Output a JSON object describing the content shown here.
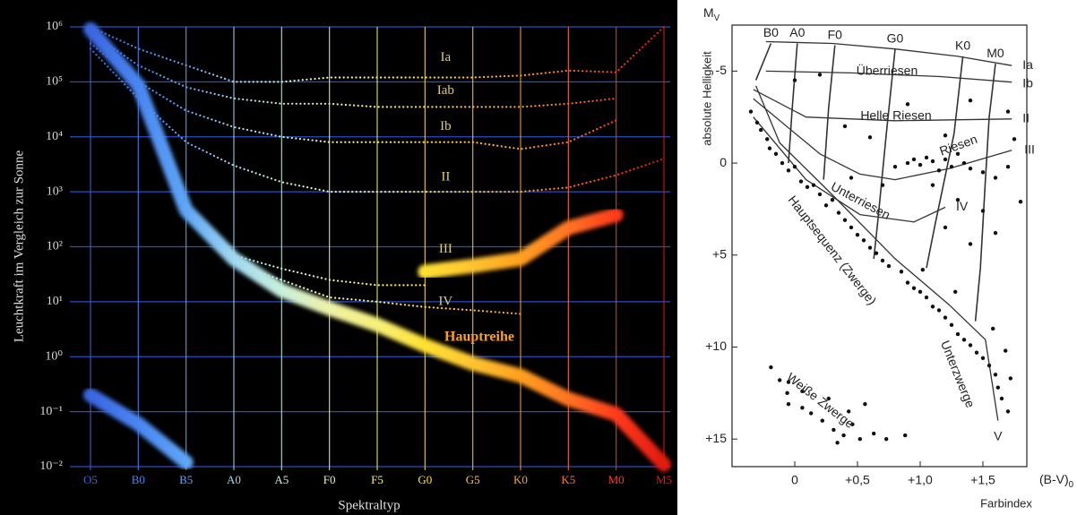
{
  "chart_data": [
    {
      "type": "line",
      "y_label": "Leuchtkraft im Vergleich zur Sonne",
      "x_label": "Spektraltyp",
      "categories": [
        "O5",
        "B0",
        "B5",
        "A0",
        "A5",
        "F0",
        "F5",
        "G0",
        "G5",
        "K0",
        "K5",
        "M0",
        "M5"
      ],
      "category_colors": [
        "#3a66e0",
        "#4a86f2",
        "#5ea6f6",
        "#a0d8f0",
        "#c8f0dc",
        "#eef2a6",
        "#f6f07a",
        "#ffe030",
        "#ffc430",
        "#ffa020",
        "#ff7424",
        "#ff3a1c",
        "#e01a10"
      ],
      "log_y": true,
      "ylim": [
        0.01,
        1000000
      ],
      "yticks": [
        {
          "value": 0.01,
          "label": "10⁻²"
        },
        {
          "value": 0.1,
          "label": "10⁻¹"
        },
        {
          "value": 1,
          "label": "10⁰"
        },
        {
          "value": 10,
          "label": "10¹"
        },
        {
          "value": 100,
          "label": "10²"
        },
        {
          "value": 1000,
          "label": "10³"
        },
        {
          "value": 10000,
          "label": "10⁴"
        },
        {
          "value": 100000,
          "label": "10⁵"
        },
        {
          "value": 1000000,
          "label": "10⁶"
        }
      ],
      "grid": true,
      "grid_color": "#2a4cc4",
      "series": [
        {
          "name": "Ia",
          "style": "dotted",
          "values": [
            1000000,
            400000,
            200000,
            100000,
            100000,
            120000,
            120000,
            120000,
            120000,
            130000,
            160000,
            150000,
            1000000
          ]
        },
        {
          "name": "Iab",
          "style": "dotted",
          "values": [
            800000,
            200000,
            80000,
            50000,
            40000,
            40000,
            35000,
            35000,
            35000,
            35000,
            40000,
            50000,
            null
          ]
        },
        {
          "name": "Ib",
          "style": "dotted",
          "values": [
            500000,
            100000,
            30000,
            15000,
            10000,
            8000,
            8000,
            8000,
            8000,
            6000,
            8000,
            20000,
            null
          ]
        },
        {
          "name": "II",
          "style": "dotted",
          "values": [
            400000,
            50000,
            8000,
            3000,
            1500,
            1000,
            1000,
            1000,
            1000,
            1000,
            1200,
            2000,
            4000
          ]
        },
        {
          "name": "III",
          "style": "dotted",
          "values": [
            null,
            null,
            null,
            70,
            40,
            25,
            20,
            20,
            null,
            null,
            null,
            null,
            null
          ]
        },
        {
          "name": "IV",
          "style": "dotted",
          "values": [
            null,
            null,
            null,
            50,
            25,
            12,
            10,
            8,
            7,
            6,
            null,
            null,
            null
          ]
        },
        {
          "name": "Hauptreihe",
          "style": "band",
          "label_color": "#ffa21a",
          "values": [
            900000,
            87000,
            460,
            60,
            16,
            7.5,
            3.8,
            1.6,
            0.75,
            0.45,
            0.17,
            0.09,
            0.011
          ]
        },
        {
          "style": "band",
          "values": [
            null,
            null,
            null,
            null,
            null,
            null,
            null,
            35,
            45,
            60,
            220,
            380,
            null
          ]
        },
        {
          "style": "band",
          "values": [
            0.2,
            0.06,
            0.012,
            null,
            null,
            null,
            null,
            null,
            null,
            null,
            null,
            null,
            null
          ]
        }
      ]
    },
    {
      "type": "scatter",
      "y_label": "absolute Helligkeit",
      "y_symbol": "MV",
      "x_label": "Farbindex",
      "x_symbol": "(B-V)0",
      "xlim": [
        -0.5,
        1.85
      ],
      "xticks": [
        0,
        {
          "value": 0.5,
          "label": "+0,5"
        },
        {
          "value": 1.0,
          "label": "+1,0"
        },
        {
          "value": 1.5,
          "label": "+1,5"
        }
      ],
      "ylim": [
        -7.5,
        16.5
      ],
      "y_inverted": true,
      "yticks": [
        -5,
        0,
        {
          "value": 5,
          "label": "+5"
        },
        {
          "value": 10,
          "label": "+10"
        },
        {
          "value": 15,
          "label": "+15"
        }
      ],
      "points": {
        "x": [
          -0.19,
          -0.12,
          -0.06,
          -0.05,
          0.06,
          0.13,
          0.22,
          0.31,
          0.39,
          0.46,
          0.52,
          0.63,
          0.73,
          0.88,
          0.06,
          0.27,
          0.43,
          0.56,
          0.34,
          -0.05,
          -0.35,
          -0.3,
          -0.27,
          -0.22,
          -0.2,
          -0.15,
          -0.1,
          -0.05,
          0,
          0.05,
          0.1,
          0.15,
          0.2,
          0.25,
          0.3,
          0.35,
          0.4,
          0.45,
          0.5,
          0.55,
          0.6,
          0.65,
          0.7,
          0.75,
          0.85,
          0.9,
          0.95,
          1.0,
          1.05,
          1.1,
          1.15,
          1.2,
          1.25,
          1.3,
          1.35,
          1.4,
          1.45,
          1.5,
          1.55,
          1.6,
          1.62,
          1.65,
          1.7,
          1.72,
          1.68,
          1.58,
          1.28,
          1.02,
          0.8,
          0.9,
          0.95,
          1.0,
          1.05,
          1.1,
          1.15,
          1.2,
          1.25,
          1.3,
          1.35,
          1.4,
          1.5,
          1.6,
          1.7,
          1.1,
          1.3,
          1.5,
          1.2,
          1.4,
          1.6,
          0.7,
          0.6,
          0.4,
          0.9,
          1.4,
          1.7,
          0.2,
          0.0,
          1.75,
          1.8,
          1.2,
          0.45
        ],
        "y": [
          11.1,
          11.8,
          12.5,
          13.1,
          13.3,
          13.6,
          14.0,
          14.5,
          14.8,
          14.2,
          15.0,
          14.7,
          15.0,
          14.8,
          12.4,
          12.8,
          13.5,
          13.1,
          15.2,
          11.9,
          -2.8,
          -2.2,
          -1.8,
          -1.3,
          -0.8,
          -0.5,
          0,
          0.4,
          0.2,
          1.0,
          1.3,
          1.2,
          1.7,
          2.3,
          2.0,
          2.7,
          3.1,
          3.5,
          3.9,
          4.2,
          4.6,
          4.9,
          5.3,
          5.6,
          5.9,
          6.5,
          6.8,
          7.0,
          7.3,
          7.8,
          8.0,
          8.4,
          8.8,
          9.3,
          9.6,
          9.9,
          10.3,
          10.6,
          11.0,
          11.5,
          12.2,
          12.8,
          13.5,
          11.7,
          10.2,
          9.0,
          7.0,
          5.8,
          0.2,
          0.0,
          -0.2,
          0.1,
          -0.3,
          -0.1,
          0.4,
          -0.2,
          0.2,
          -0.5,
          0.0,
          0.3,
          0.5,
          0.8,
          0.2,
          1.2,
          2.0,
          2.6,
          3.5,
          4.4,
          3.8,
          1.2,
          -1.4,
          -2.0,
          -3.2,
          -3.4,
          -2.8,
          -4.8,
          -4.5,
          -1.3,
          2.1,
          -1.5,
          0.8
        ]
      },
      "curves": [
        {
          "label": "Ia",
          "x": [
            -0.23,
            0.3,
            0.8,
            1.3,
            1.73
          ],
          "y": [
            -6.6,
            -6.5,
            -6.2,
            -5.8,
            -5.3
          ]
        },
        {
          "label": "Ib",
          "x": [
            -0.23,
            0.45,
            1.16,
            1.73
          ],
          "y": [
            -5.0,
            -4.9,
            -4.7,
            -4.4
          ]
        },
        {
          "label": "II",
          "x": [
            -0.33,
            0.09,
            0.8,
            1.73
          ],
          "y": [
            -4.0,
            -2.5,
            -2.3,
            -2.4
          ]
        },
        {
          "label": "III",
          "x": [
            -0.33,
            0.2,
            0.52,
            0.8,
            1.23,
            1.73
          ],
          "y": [
            -3.5,
            -0.5,
            0.6,
            0.9,
            0.3,
            -0.7
          ]
        },
        {
          "label": "IV",
          "x": [
            -0.33,
            0.09,
            0.52,
            0.95,
            1.2
          ],
          "y": [
            -2.5,
            0.9,
            2.8,
            3.2,
            2.4
          ]
        },
        {
          "label": "V",
          "x": [
            -0.31,
            -0.12,
            0.31,
            0.8,
            1.23,
            1.52,
            1.62
          ],
          "y": [
            -4.2,
            -1.1,
            1.8,
            5.2,
            7.7,
            9.6,
            14.0
          ]
        }
      ],
      "spectral_types": [
        {
          "label": "B0",
          "x": [
            -0.19,
            -0.31
          ],
          "y": [
            -6.5,
            -4.5
          ]
        },
        {
          "label": "A0",
          "x": [
            0.02,
            -0.02,
            -0.05
          ],
          "y": [
            -6.5,
            -3.0,
            0.0
          ]
        },
        {
          "label": "F0",
          "x": [
            0.32,
            0.27,
            0.23
          ],
          "y": [
            -6.4,
            -3.0,
            0.9
          ]
        },
        {
          "label": "G0",
          "x": [
            0.8,
            0.73,
            0.66,
            0.63
          ],
          "y": [
            -6.2,
            -1.6,
            3.3,
            5.2
          ]
        },
        {
          "label": "K0",
          "x": [
            1.34,
            1.27,
            1.12,
            1.05
          ],
          "y": [
            -5.8,
            -1.6,
            3.3,
            5.7
          ]
        },
        {
          "label": "M0",
          "x": [
            1.6,
            1.55,
            1.52,
            1.48,
            1.44
          ],
          "y": [
            -5.4,
            -2.5,
            0.9,
            5.7,
            8.6
          ]
        }
      ],
      "annotations": [
        "Überriesen",
        "Helle Riesen",
        "Riesen",
        "Unterriesen",
        "Hauptsequenz (Zwerge)",
        "Unterzwerge",
        "Weiße Zwerge"
      ]
    }
  ]
}
